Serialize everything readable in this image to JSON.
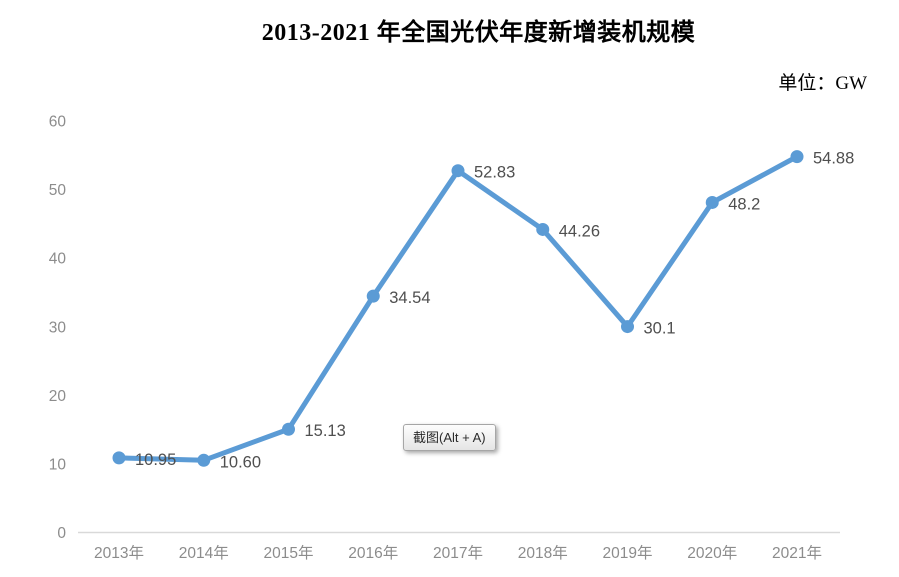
{
  "header": {
    "title": "2013-2021 年全国光伏年度新增装机规模",
    "unit_label": "单位：GW"
  },
  "tooltip": {
    "text": "截图(Alt + A)"
  },
  "chart_data": {
    "type": "line",
    "title": "2013-2021 年全国光伏年度新增装机规模",
    "unit": "GW",
    "categories": [
      "2013年",
      "2014年",
      "2015年",
      "2016年",
      "2017年",
      "2018年",
      "2019年",
      "2020年",
      "2021年"
    ],
    "values": [
      10.95,
      10.6,
      15.13,
      34.54,
      52.83,
      44.26,
      30.1,
      48.2,
      54.88
    ],
    "data_labels": [
      "10.95",
      "10.60",
      "15.13",
      "34.54",
      "52.83",
      "44.26",
      "30.1",
      "48.2",
      "54.88"
    ],
    "y_ticks": [
      0,
      10,
      20,
      30,
      40,
      50,
      60
    ],
    "ylim": [
      0,
      60
    ],
    "grid": false,
    "legend": "none",
    "colors": {
      "line": "#5b9bd5",
      "marker": "#5b9bd5",
      "data_label": "#4f4f4f",
      "axis_label": "#8c8c8c",
      "axis_line": "#d9d9d9",
      "title": "#000000"
    }
  }
}
